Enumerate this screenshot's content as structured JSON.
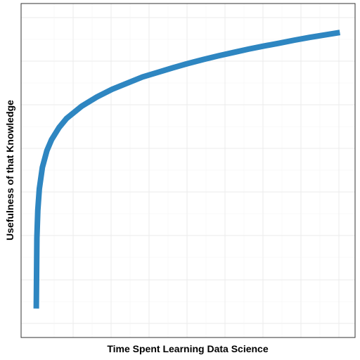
{
  "chart_data": {
    "type": "line",
    "title": "",
    "xlabel": "Time Spent Learning Data Science",
    "ylabel": "Usefulness of that Knowledge",
    "x_tick_labels": false,
    "y_tick_labels": false,
    "grid": true,
    "legend": "none",
    "xlim": [
      0,
      1
    ],
    "ylim": [
      0,
      1
    ],
    "series": [
      {
        "color": "#2e86c1",
        "x": [
          0.0,
          0.002,
          0.005,
          0.01,
          0.02,
          0.035,
          0.05,
          0.075,
          0.1,
          0.15,
          0.2,
          0.25,
          0.3,
          0.35,
          0.4,
          0.45,
          0.5,
          0.55,
          0.6,
          0.65,
          0.7,
          0.75,
          0.8,
          0.85,
          0.9,
          0.95,
          1.0
        ],
        "y": [
          0.05,
          0.28,
          0.37,
          0.44,
          0.51,
          0.565,
          0.6,
          0.64,
          0.67,
          0.71,
          0.74,
          0.765,
          0.785,
          0.805,
          0.82,
          0.835,
          0.849,
          0.862,
          0.874,
          0.885,
          0.896,
          0.906,
          0.915,
          0.925,
          0.934,
          0.942,
          0.95
        ]
      }
    ]
  }
}
